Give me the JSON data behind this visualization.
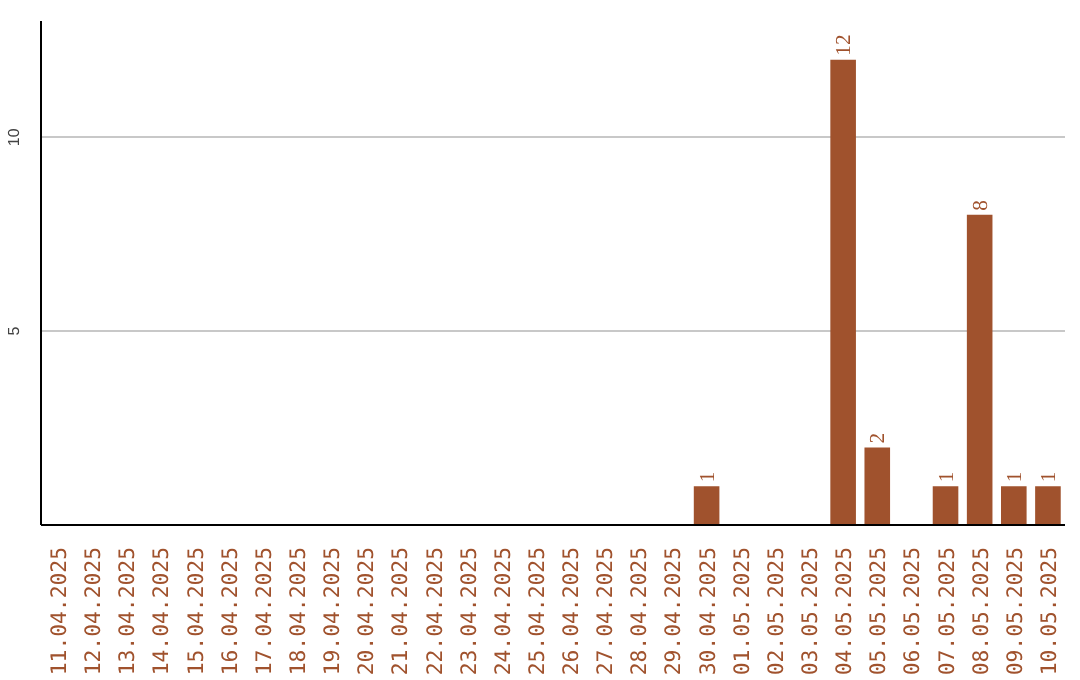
{
  "chart_data": {
    "type": "bar",
    "categories": [
      "11.04.2025",
      "12.04.2025",
      "13.04.2025",
      "14.04.2025",
      "15.04.2025",
      "16.04.2025",
      "17.04.2025",
      "18.04.2025",
      "19.04.2025",
      "20.04.2025",
      "21.04.2025",
      "22.04.2025",
      "23.04.2025",
      "24.04.2025",
      "25.04.2025",
      "26.04.2025",
      "27.04.2025",
      "28.04.2025",
      "29.04.2025",
      "30.04.2025",
      "01.05.2025",
      "02.05.2025",
      "03.05.2025",
      "04.05.2025",
      "05.05.2025",
      "06.05.2025",
      "07.05.2025",
      "08.05.2025",
      "09.05.2025",
      "10.05.2025"
    ],
    "values": [
      0,
      0,
      0,
      0,
      0,
      0,
      0,
      0,
      0,
      0,
      0,
      0,
      0,
      0,
      0,
      0,
      0,
      0,
      0,
      1,
      0,
      0,
      0,
      12,
      2,
      0,
      1,
      8,
      1,
      1
    ],
    "value_labels": [
      null,
      null,
      null,
      null,
      null,
      null,
      null,
      null,
      null,
      null,
      null,
      null,
      null,
      null,
      null,
      null,
      null,
      null,
      null,
      "1",
      null,
      null,
      null,
      "12",
      "2",
      null,
      "1",
      "8",
      "1",
      "1"
    ],
    "color": "#a0522d",
    "ylim": [
      0,
      13
    ],
    "yticks": [
      5,
      10
    ],
    "grid": "y"
  }
}
